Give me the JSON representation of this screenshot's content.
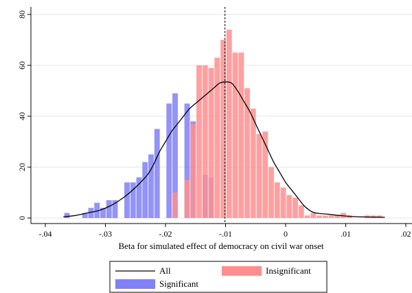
{
  "chart_data": {
    "type": "bar",
    "title": "",
    "xlabel": "Beta for simulated effect of democracy on civil war onset",
    "ylabel": "",
    "xlim": [
      -0.04,
      0.02
    ],
    "ylim": [
      0,
      80
    ],
    "x_ticks": [
      {
        "value": -0.04,
        "label": "-.04"
      },
      {
        "value": -0.03,
        "label": "-.03"
      },
      {
        "value": -0.02,
        "label": "-.02"
      },
      {
        "value": -0.01,
        "label": "-.01"
      },
      {
        "value": 0.0,
        "label": "0"
      },
      {
        "value": 0.01,
        "label": ".01"
      },
      {
        "value": 0.02,
        "label": ".02"
      }
    ],
    "y_ticks": [
      {
        "value": 0,
        "label": "0"
      },
      {
        "value": 20,
        "label": "20"
      },
      {
        "value": 40,
        "label": "40"
      },
      {
        "value": 60,
        "label": "60"
      },
      {
        "value": 80,
        "label": "80"
      }
    ],
    "grid": true,
    "reference_line_x": -0.0101,
    "bar_width": 0.0009,
    "legend_position": "bottom",
    "series": [
      {
        "name": "Significant",
        "kind": "bar",
        "color": "#8080f7",
        "opacity": 0.85,
        "points": [
          {
            "x": -0.0364,
            "y": 2
          },
          {
            "x": -0.0334,
            "y": 2
          },
          {
            "x": -0.0324,
            "y": 4
          },
          {
            "x": -0.0314,
            "y": 6
          },
          {
            "x": -0.0304,
            "y": 4
          },
          {
            "x": -0.0294,
            "y": 7
          },
          {
            "x": -0.0284,
            "y": 7
          },
          {
            "x": -0.0264,
            "y": 14
          },
          {
            "x": -0.0254,
            "y": 14
          },
          {
            "x": -0.0244,
            "y": 16
          },
          {
            "x": -0.0234,
            "y": 22
          },
          {
            "x": -0.0224,
            "y": 25
          },
          {
            "x": -0.0214,
            "y": 35
          },
          {
            "x": -0.0194,
            "y": 45
          },
          {
            "x": -0.0184,
            "y": 49
          },
          {
            "x": -0.0164,
            "y": 45
          },
          {
            "x": -0.0154,
            "y": 38
          },
          {
            "x": -0.0134,
            "y": 17
          },
          {
            "x": -0.0124,
            "y": 16
          }
        ]
      },
      {
        "name": "Insignificant",
        "kind": "bar",
        "color": "#ff8f8f",
        "opacity": 0.85,
        "points": [
          {
            "x": -0.0184,
            "y": 10
          },
          {
            "x": -0.0164,
            "y": 15
          },
          {
            "x": -0.0154,
            "y": 37
          },
          {
            "x": -0.0144,
            "y": 60
          },
          {
            "x": -0.0134,
            "y": 60
          },
          {
            "x": -0.0124,
            "y": 59
          },
          {
            "x": -0.0114,
            "y": 63
          },
          {
            "x": -0.0104,
            "y": 70
          },
          {
            "x": -0.0094,
            "y": 74
          },
          {
            "x": -0.0084,
            "y": 65
          },
          {
            "x": -0.0074,
            "y": 65
          },
          {
            "x": -0.0064,
            "y": 51
          },
          {
            "x": -0.0054,
            "y": 43
          },
          {
            "x": -0.0044,
            "y": 33
          },
          {
            "x": -0.0034,
            "y": 34
          },
          {
            "x": -0.0024,
            "y": 20
          },
          {
            "x": -0.0014,
            "y": 14
          },
          {
            "x": -0.0004,
            "y": 12
          },
          {
            "x": 0.0006,
            "y": 9
          },
          {
            "x": 0.0016,
            "y": 8
          },
          {
            "x": 0.0026,
            "y": 5
          },
          {
            "x": 0.0036,
            "y": 1
          },
          {
            "x": 0.0046,
            "y": 2
          },
          {
            "x": 0.0056,
            "y": 1
          },
          {
            "x": 0.0066,
            "y": 1
          },
          {
            "x": 0.0076,
            "y": 1
          },
          {
            "x": 0.0086,
            "y": 1
          },
          {
            "x": 0.0096,
            "y": 2
          },
          {
            "x": 0.0106,
            "y": 1
          },
          {
            "x": 0.0136,
            "y": 1
          },
          {
            "x": 0.0146,
            "y": 1
          },
          {
            "x": 0.0156,
            "y": 1
          }
        ]
      },
      {
        "name": "All",
        "kind": "line",
        "color": "#000000",
        "points": [
          {
            "x": -0.037,
            "y": 0.5
          },
          {
            "x": -0.035,
            "y": 1
          },
          {
            "x": -0.033,
            "y": 2
          },
          {
            "x": -0.031,
            "y": 3
          },
          {
            "x": -0.029,
            "y": 5
          },
          {
            "x": -0.027,
            "y": 8
          },
          {
            "x": -0.025,
            "y": 12
          },
          {
            "x": -0.023,
            "y": 17
          },
          {
            "x": -0.022,
            "y": 21
          },
          {
            "x": -0.021,
            "y": 26
          },
          {
            "x": -0.02,
            "y": 30
          },
          {
            "x": -0.019,
            "y": 34
          },
          {
            "x": -0.018,
            "y": 37
          },
          {
            "x": -0.017,
            "y": 40
          },
          {
            "x": -0.016,
            "y": 43
          },
          {
            "x": -0.015,
            "y": 45
          },
          {
            "x": -0.014,
            "y": 47
          },
          {
            "x": -0.013,
            "y": 49
          },
          {
            "x": -0.012,
            "y": 51
          },
          {
            "x": -0.011,
            "y": 53
          },
          {
            "x": -0.01,
            "y": 53.5
          },
          {
            "x": -0.009,
            "y": 53
          },
          {
            "x": -0.008,
            "y": 50
          },
          {
            "x": -0.007,
            "y": 46
          },
          {
            "x": -0.006,
            "y": 42
          },
          {
            "x": -0.005,
            "y": 37
          },
          {
            "x": -0.004,
            "y": 32
          },
          {
            "x": -0.003,
            "y": 27
          },
          {
            "x": -0.002,
            "y": 22
          },
          {
            "x": -0.001,
            "y": 18
          },
          {
            "x": 0.0,
            "y": 14
          },
          {
            "x": 0.001,
            "y": 11
          },
          {
            "x": 0.002,
            "y": 8
          },
          {
            "x": 0.003,
            "y": 5
          },
          {
            "x": 0.004,
            "y": 3
          },
          {
            "x": 0.005,
            "y": 2
          },
          {
            "x": 0.007,
            "y": 1.5
          },
          {
            "x": 0.009,
            "y": 1
          },
          {
            "x": 0.012,
            "y": 0.5
          },
          {
            "x": 0.0165,
            "y": 0.3
          }
        ]
      }
    ],
    "legend": [
      {
        "label": "All",
        "swatch": "line",
        "color": "#000000"
      },
      {
        "label": "Insignificant",
        "swatch": "box",
        "color": "#ff8f8f"
      },
      {
        "label": "Significant",
        "swatch": "box",
        "color": "#8080f7"
      }
    ]
  }
}
